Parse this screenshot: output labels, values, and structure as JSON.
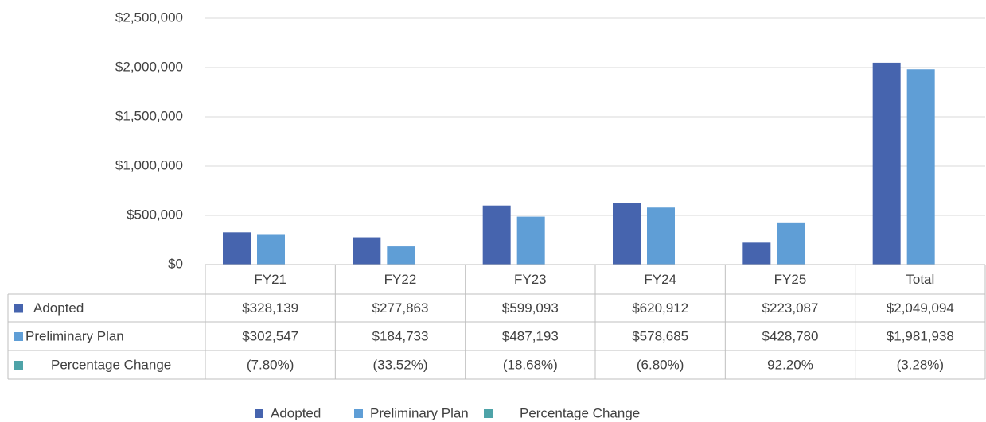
{
  "chart_data": {
    "type": "bar",
    "categories": [
      "FY21",
      "FY22",
      "FY23",
      "FY24",
      "FY25",
      "Total"
    ],
    "series": [
      {
        "name": "Adopted",
        "color": "#4664ae",
        "values": [
          328139,
          277863,
          599093,
          620912,
          223087,
          2049094
        ],
        "value_labels": [
          "$328,139",
          "$277,863",
          "$599,093",
          "$620,912",
          "$223,087",
          "$2,049,094"
        ]
      },
      {
        "name": "Preliminary Plan",
        "color": "#5f9ed6",
        "values": [
          302547,
          184733,
          487193,
          578685,
          428780,
          1981938
        ],
        "value_labels": [
          "$302,547",
          "$184,733",
          "$487,193",
          "$578,685",
          "$428,780",
          "$1,981,938"
        ]
      },
      {
        "name": "Percentage Change",
        "color": "#4ea3a8",
        "values": [
          -7.8,
          -33.52,
          -18.68,
          -6.8,
          92.2,
          -3.28
        ],
        "value_labels": [
          "(7.80%)",
          "(33.52%)",
          "(18.68%)",
          "(6.80%)",
          "92.20%",
          "(3.28%)"
        ]
      }
    ],
    "ylim": [
      0,
      2500000
    ],
    "yticks": [
      {
        "value": 0,
        "label": "$0"
      },
      {
        "value": 500000,
        "label": "$500,000"
      },
      {
        "value": 1000000,
        "label": "$1,000,000"
      },
      {
        "value": 1500000,
        "label": "$1,500,000"
      },
      {
        "value": 2000000,
        "label": "$2,000,000"
      },
      {
        "value": 2500000,
        "label": "$2,500,000"
      }
    ],
    "grid": true,
    "legend": "bottom"
  }
}
